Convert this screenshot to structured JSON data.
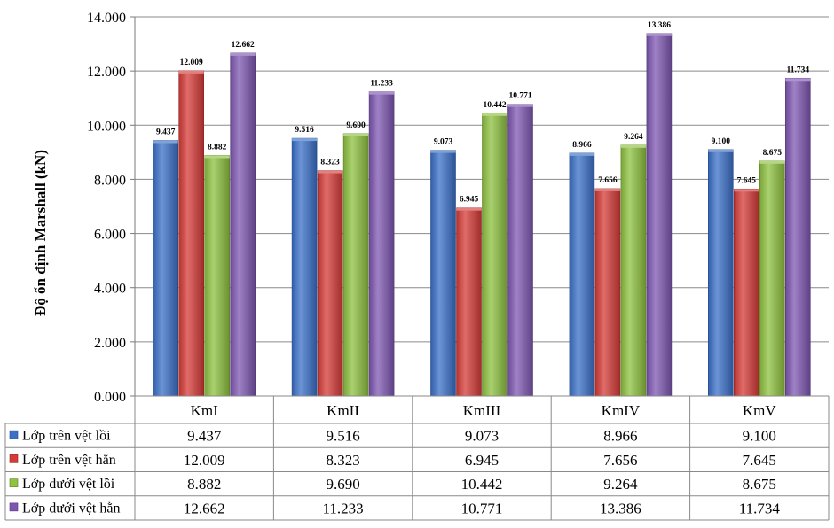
{
  "chart_data": {
    "type": "bar",
    "ylabel": "Độ ổn định Marshall (kN)",
    "ylim": [
      0,
      14
    ],
    "ytick_step": 2,
    "ytick_labels": [
      "0.000",
      "2.000",
      "4.000",
      "6.000",
      "8.000",
      "10.000",
      "12.000",
      "14.000"
    ],
    "grid": true,
    "legend": "data-table",
    "categories": [
      "KmI",
      "KmII",
      "KmIII",
      "KmIV",
      "KmV"
    ],
    "series": [
      {
        "name": "Lớp trên vệt lồi",
        "color": "#3a70c8",
        "values": [
          9.437,
          9.516,
          9.073,
          8.966,
          9.1
        ],
        "labels": [
          "9.437",
          "9.516",
          "9.073",
          "8.966",
          "9.100"
        ]
      },
      {
        "name": "Lớp trên vệt hằn",
        "color": "#d63b37",
        "values": [
          12.009,
          8.323,
          6.945,
          7.656,
          7.645
        ],
        "labels": [
          "12.009",
          "8.323",
          "6.945",
          "7.656",
          "7.645"
        ]
      },
      {
        "name": "Lớp dưới vệt lồi",
        "color": "#8ec23f",
        "values": [
          8.882,
          9.69,
          10.442,
          9.264,
          8.675
        ],
        "labels": [
          "8.882",
          "9.690",
          "10.442",
          "9.264",
          "8.675"
        ]
      },
      {
        "name": "Lớp dưới vệt hằn",
        "color": "#7f57b3",
        "values": [
          12.662,
          11.233,
          10.771,
          13.386,
          11.734
        ],
        "labels": [
          "12.662",
          "11.233",
          "10.771",
          "13.386",
          "11.734"
        ]
      }
    ]
  }
}
